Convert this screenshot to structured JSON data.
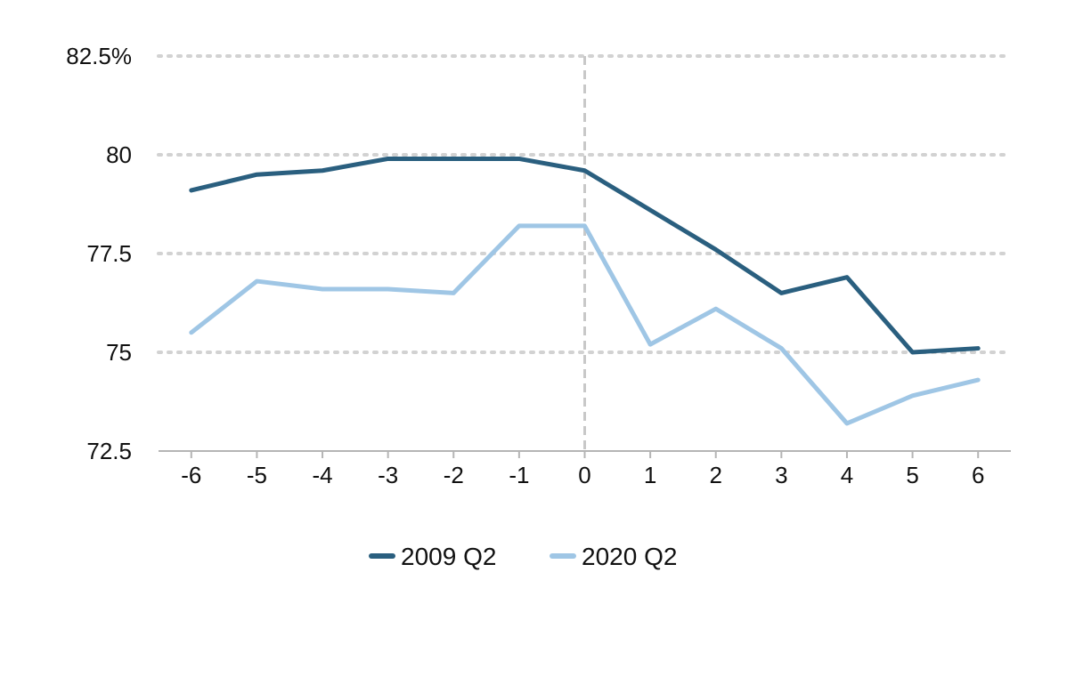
{
  "chart_data": {
    "type": "line",
    "title": "",
    "xlabel": "",
    "ylabel": "",
    "x": [
      -6,
      -5,
      -4,
      -3,
      -2,
      -1,
      0,
      1,
      2,
      3,
      4,
      5,
      6
    ],
    "x_tick_labels": [
      "-6",
      "-5",
      "-4",
      "-3",
      "-2",
      "-1",
      "0",
      "1",
      "2",
      "3",
      "4",
      "5",
      "6"
    ],
    "y_ticks": [
      72.5,
      75,
      77.5,
      80,
      82.5
    ],
    "y_tick_labels": [
      "72.5",
      "75",
      "77.5",
      "80",
      "82.5%"
    ],
    "ylim": [
      72.5,
      82.5
    ],
    "xlim": [
      -6.5,
      6.5
    ],
    "grid": "horizontal dotted",
    "reference_line_x": 0,
    "legend_position": "bottom-center",
    "series": [
      {
        "name": "2009 Q2",
        "color": "#2a5f7f",
        "values": [
          79.1,
          79.5,
          79.6,
          79.9,
          79.9,
          79.9,
          79.6,
          78.6,
          77.6,
          76.5,
          76.9,
          75.0,
          75.1
        ]
      },
      {
        "name": "2020 Q2",
        "color": "#9fc6e5",
        "values": [
          75.5,
          76.8,
          76.6,
          76.6,
          76.5,
          78.2,
          78.2,
          75.2,
          76.1,
          75.1,
          73.2,
          73.9,
          74.3
        ]
      }
    ]
  }
}
